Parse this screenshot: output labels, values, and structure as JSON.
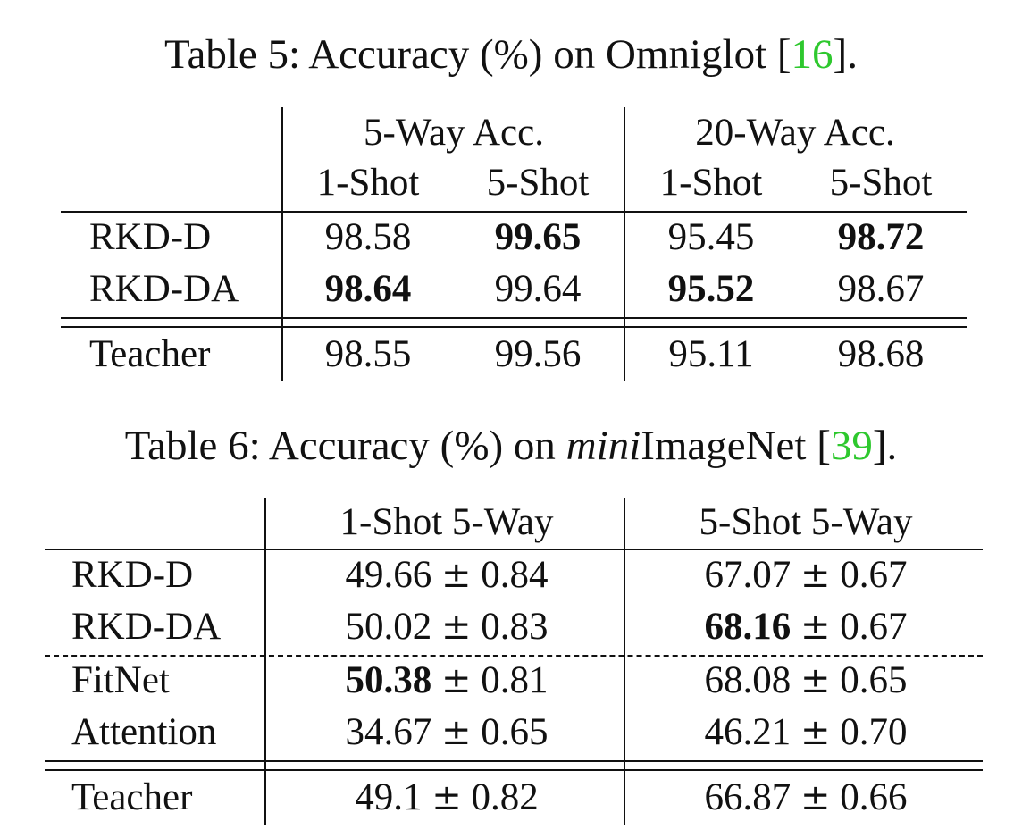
{
  "table5": {
    "caption_prefix": "Table 5: Accuracy (%) on Omniglot [",
    "caption_cite": "16",
    "caption_suffix": "].",
    "group_headers": [
      "5-Way Acc.",
      "20-Way Acc."
    ],
    "sub_headers": [
      "1-Shot",
      "5-Shot",
      "1-Shot",
      "5-Shot"
    ],
    "rows": [
      {
        "label": "RKD-D",
        "values": [
          "98.58",
          "99.65",
          "95.45",
          "98.72"
        ],
        "bold": [
          false,
          true,
          false,
          true
        ]
      },
      {
        "label": "RKD-DA",
        "values": [
          "98.64",
          "99.64",
          "95.52",
          "98.67"
        ],
        "bold": [
          true,
          false,
          true,
          false
        ]
      },
      {
        "label": "Teacher",
        "values": [
          "98.55",
          "99.56",
          "95.11",
          "98.68"
        ],
        "bold": [
          false,
          false,
          false,
          false
        ]
      }
    ]
  },
  "table6": {
    "caption_prefix": "Table 6: Accuracy (%) on ",
    "caption_italic": "mini",
    "caption_mid": "ImageNet [",
    "caption_cite": "39",
    "caption_suffix": "].",
    "headers": [
      "1-Shot  5-Way",
      "5-Shot  5-Way"
    ],
    "pm": "±",
    "rows": [
      {
        "label": "RKD-D",
        "cells": [
          {
            "mean": "49.66",
            "std": "0.84",
            "bold": false
          },
          {
            "mean": "67.07",
            "std": "0.67",
            "bold": false
          }
        ]
      },
      {
        "label": "RKD-DA",
        "cells": [
          {
            "mean": "50.02",
            "std": "0.83",
            "bold": false
          },
          {
            "mean": "68.16",
            "std": "0.67",
            "bold": true
          }
        ]
      },
      {
        "label": "FitNet",
        "cells": [
          {
            "mean": "50.38",
            "std": "0.81",
            "bold": true
          },
          {
            "mean": "68.08",
            "std": "0.65",
            "bold": false
          }
        ]
      },
      {
        "label": "Attention",
        "cells": [
          {
            "mean": "34.67",
            "std": "0.65",
            "bold": false
          },
          {
            "mean": "46.21",
            "std": "0.70",
            "bold": false
          }
        ]
      },
      {
        "label": "Teacher",
        "cells": [
          {
            "mean": "49.1",
            "std": "0.82",
            "bold": false
          },
          {
            "mean": "66.87",
            "std": "0.66",
            "bold": false
          }
        ]
      }
    ]
  }
}
